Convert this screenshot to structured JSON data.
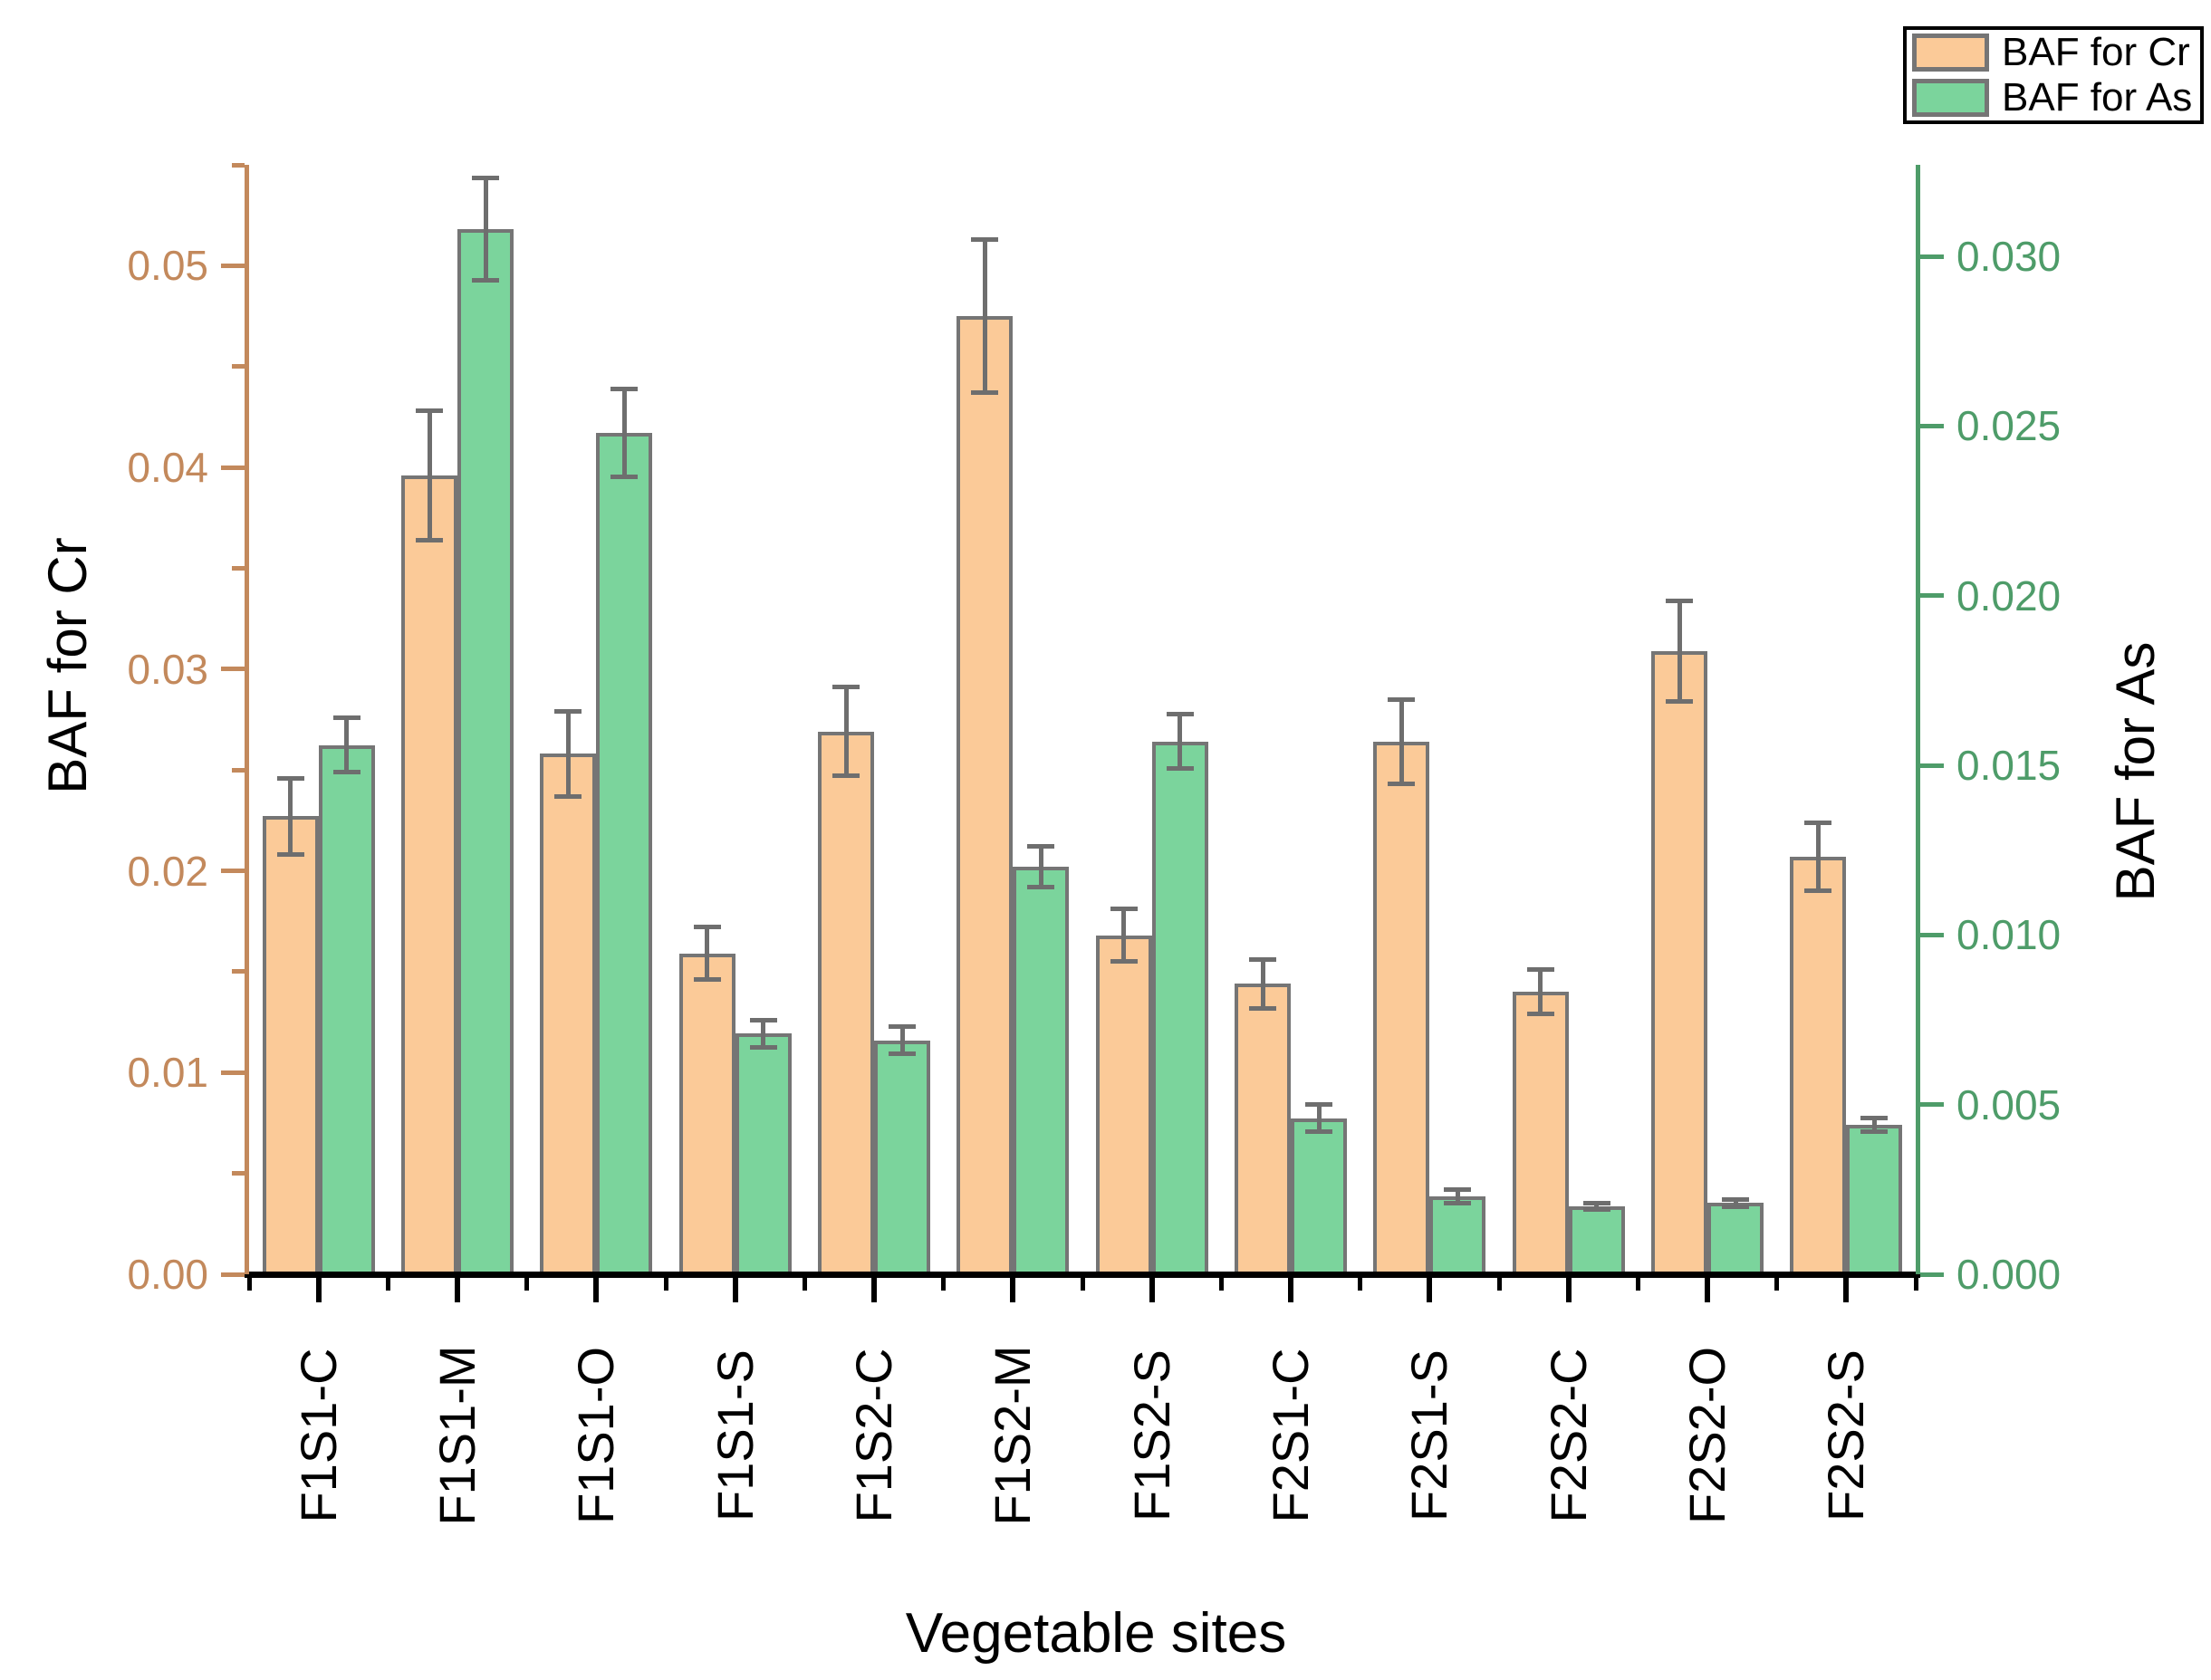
{
  "chart_data": {
    "type": "bar",
    "title": "",
    "categories": [
      "F1S1-C",
      "F1S1-M",
      "F1S1-O",
      "F1S1-S",
      "F1S2-C",
      "F1S2-M",
      "F1S2-S",
      "F2S1-C",
      "F2S1-S",
      "F2S2-C",
      "F2S2-O",
      "F2S2-S"
    ],
    "series": [
      {
        "name": "BAF for Cr",
        "axis": "left",
        "color": "#FBCA98",
        "values": [
          0.0227,
          0.0396,
          0.0258,
          0.0159,
          0.0269,
          0.0475,
          0.0168,
          0.0144,
          0.0264,
          0.014,
          0.0309,
          0.0207
        ],
        "errors": [
          0.0019,
          0.0032,
          0.0021,
          0.0013,
          0.0022,
          0.0038,
          0.0013,
          0.0012,
          0.0021,
          0.0011,
          0.0025,
          0.0017
        ]
      },
      {
        "name": "BAF for As",
        "axis": "right",
        "color": "#7BD49C",
        "values": [
          0.0156,
          0.0308,
          0.0248,
          0.0071,
          0.0069,
          0.012,
          0.0157,
          0.0046,
          0.0023,
          0.002,
          0.0021,
          0.0044
        ],
        "errors": [
          0.0008,
          0.0015,
          0.0013,
          0.0004,
          0.0004,
          0.0006,
          0.0008,
          0.0004,
          0.0002,
          0.0001,
          0.0001,
          0.0002
        ]
      }
    ],
    "x_axis": {
      "label": "Vegetable sites"
    },
    "left_axis": {
      "label": "BAF for Cr",
      "color": "#C3895C",
      "max": 0.055,
      "tick_values": [
        0,
        0.01,
        0.02,
        0.03,
        0.04,
        0.05
      ],
      "tick_labels": [
        "0.00",
        "0.01",
        "0.02",
        "0.03",
        "0.04",
        "0.05"
      ],
      "minor_tick_values": [
        0.005,
        0.015,
        0.025,
        0.035,
        0.045,
        0.055
      ]
    },
    "right_axis": {
      "label": "BAF for As",
      "color": "#4E9C69",
      "max": 0.0327,
      "tick_values": [
        0,
        0.005,
        0.01,
        0.015,
        0.02,
        0.025,
        0.03
      ],
      "tick_labels": [
        "0.000",
        "0.005",
        "0.010",
        "0.015",
        "0.020",
        "0.025",
        "0.030"
      ]
    },
    "legend": {
      "entries": [
        {
          "label": "BAF for Cr",
          "color": "#FBCA98"
        },
        {
          "label": "BAF for As",
          "color": "#7BD49C"
        }
      ]
    },
    "styles": {
      "bar_edge": "#757575",
      "error_color": "#6E6E6E",
      "x_axis_color": "#000000",
      "background": "#FFFFFF"
    },
    "grid": false,
    "legend_position": "top-right"
  }
}
